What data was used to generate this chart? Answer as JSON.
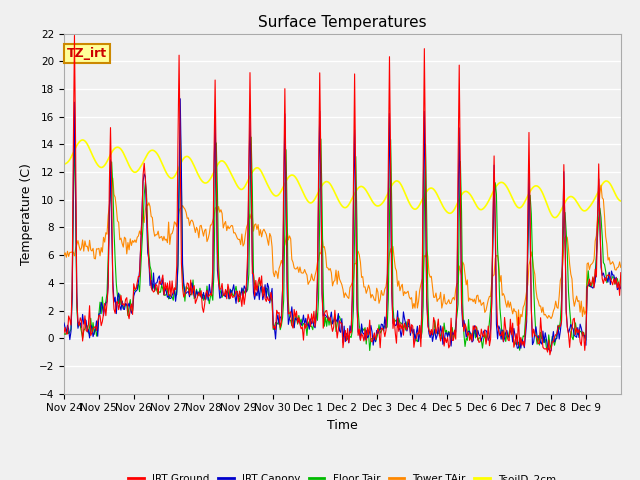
{
  "title": "Surface Temperatures",
  "xlabel": "Time",
  "ylabel": "Temperature (C)",
  "ylim": [
    -4,
    22
  ],
  "yticks": [
    -4,
    -2,
    0,
    2,
    4,
    6,
    8,
    10,
    12,
    14,
    16,
    18,
    20,
    22
  ],
  "series": {
    "IRT Ground": {
      "color": "#ff0000",
      "linewidth": 0.8
    },
    "IRT Canopy": {
      "color": "#0000cc",
      "linewidth": 0.8
    },
    "Floor Tair": {
      "color": "#00bb00",
      "linewidth": 0.8
    },
    "Tower TAir": {
      "color": "#ff8800",
      "linewidth": 0.8
    },
    "TsoilD_2cm": {
      "color": "#ffff00",
      "linewidth": 1.2
    }
  },
  "annotation_text": "TZ_irt",
  "annotation_facecolor": "#ffff99",
  "annotation_edgecolor": "#cc8800",
  "background_color": "#f0f0f0",
  "grid_color": "#ffffff",
  "x_tick_labels": [
    "Nov 24",
    "Nov 25",
    "Nov 26",
    "Nov 27",
    "Nov 28",
    "Nov 29",
    "Nov 30",
    "Dec 1",
    "Dec 2",
    "Dec 3",
    "Dec 4",
    "Dec 5",
    "Dec 6",
    "Dec 7",
    "Dec 8",
    "Dec 9"
  ],
  "num_points": 480
}
